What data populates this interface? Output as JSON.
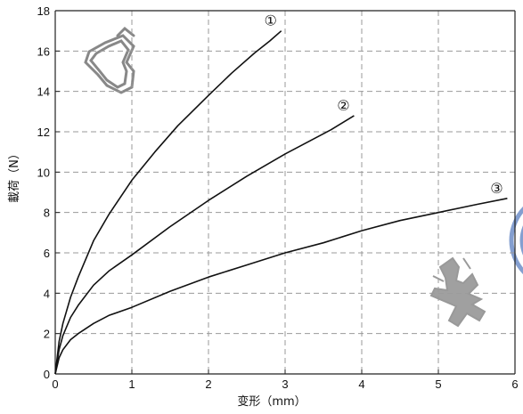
{
  "chart_data": {
    "type": "line",
    "xlabel": "变形（mm）",
    "ylabel": "載荷（N）",
    "xlim": [
      0,
      6
    ],
    "ylim": [
      0,
      18
    ],
    "xticks": [
      0,
      1,
      2,
      3,
      4,
      5,
      6
    ],
    "yticks": [
      0,
      2,
      4,
      6,
      8,
      10,
      12,
      14,
      16,
      18
    ],
    "grid": true,
    "series": [
      {
        "label": "①",
        "x": [
          0,
          0.05,
          0.1,
          0.2,
          0.3,
          0.5,
          0.7,
          1.0,
          1.3,
          1.6,
          2.0,
          2.3,
          2.6,
          2.8,
          2.95
        ],
        "y": [
          0,
          1.6,
          2.5,
          3.8,
          4.8,
          6.6,
          7.9,
          9.6,
          11.0,
          12.3,
          13.8,
          14.9,
          15.9,
          16.5,
          17.0
        ]
      },
      {
        "label": "②",
        "x": [
          0,
          0.05,
          0.1,
          0.2,
          0.3,
          0.5,
          0.7,
          1.0,
          1.5,
          2.0,
          2.5,
          3.0,
          3.3,
          3.6,
          3.9
        ],
        "y": [
          0,
          1.2,
          1.9,
          2.8,
          3.4,
          4.4,
          5.1,
          5.9,
          7.3,
          8.6,
          9.8,
          10.9,
          11.5,
          12.1,
          12.8
        ]
      },
      {
        "label": "③",
        "x": [
          0,
          0.05,
          0.1,
          0.2,
          0.3,
          0.5,
          0.7,
          1.0,
          1.5,
          2.0,
          2.5,
          3.0,
          3.5,
          4.0,
          4.5,
          5.0,
          5.5,
          5.9
        ],
        "y": [
          0,
          0.8,
          1.2,
          1.7,
          2.0,
          2.5,
          2.9,
          3.3,
          4.1,
          4.8,
          5.4,
          6.0,
          6.5,
          7.1,
          7.6,
          8.0,
          8.4,
          8.7
        ]
      }
    ]
  }
}
